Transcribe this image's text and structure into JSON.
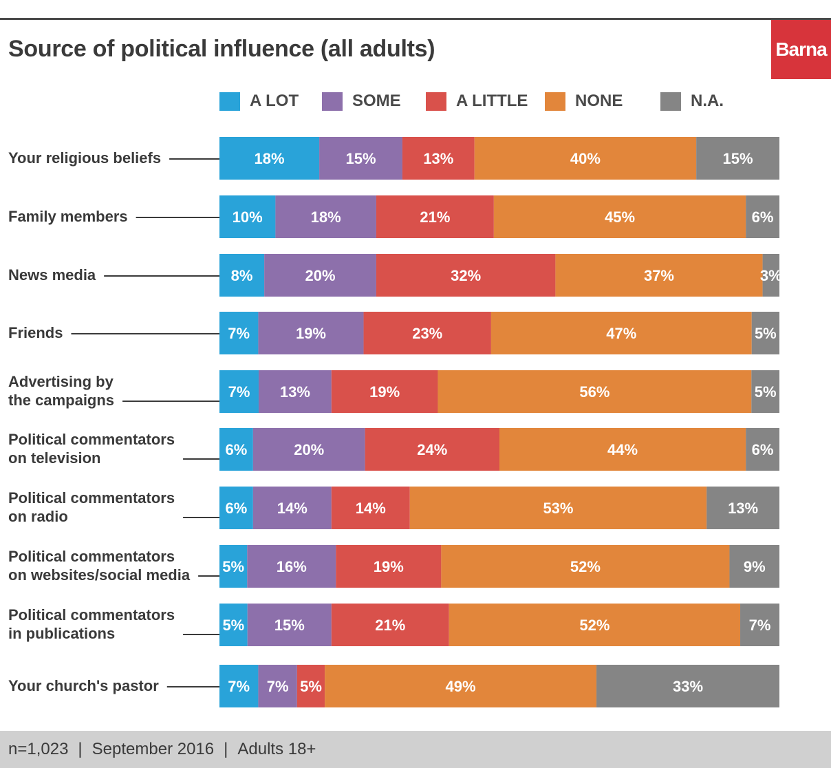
{
  "title": "Source of political influence (all adults)",
  "logo": "Barna",
  "footer": {
    "sample": "n=1,023",
    "date": "September 2016",
    "population": "Adults 18+",
    "separator": "|"
  },
  "chart_data": {
    "type": "bar",
    "orientation": "horizontal",
    "stacked": true,
    "title": "Source of political influence (all adults)",
    "legend_position": "top",
    "series": [
      {
        "name": "A LOT",
        "color": "#29a3d9"
      },
      {
        "name": "SOME",
        "color": "#8d70ab"
      },
      {
        "name": "A LITTLE",
        "color": "#d9514b"
      },
      {
        "name": "NONE",
        "color": "#e2863b"
      },
      {
        "name": "N.A.",
        "color": "#858585"
      }
    ],
    "categories": [
      {
        "label": [
          "Your religious beliefs"
        ],
        "values": [
          18,
          15,
          13,
          40,
          15
        ]
      },
      {
        "label": [
          "Family members"
        ],
        "values": [
          10,
          18,
          21,
          45,
          6
        ]
      },
      {
        "label": [
          "News media"
        ],
        "values": [
          8,
          20,
          32,
          37,
          3
        ]
      },
      {
        "label": [
          "Friends"
        ],
        "values": [
          7,
          19,
          23,
          47,
          5
        ]
      },
      {
        "label": [
          "Advertising by",
          "the campaigns"
        ],
        "values": [
          7,
          13,
          19,
          56,
          5
        ]
      },
      {
        "label": [
          "Political commentators",
          "on television"
        ],
        "values": [
          6,
          20,
          24,
          44,
          6
        ]
      },
      {
        "label": [
          "Political commentators",
          "on radio"
        ],
        "values": [
          6,
          14,
          14,
          53,
          13
        ]
      },
      {
        "label": [
          "Political commentators",
          "on websites/social media"
        ],
        "values": [
          5,
          16,
          19,
          52,
          9
        ]
      },
      {
        "label": [
          "Political commentators",
          "in publications"
        ],
        "values": [
          5,
          15,
          21,
          52,
          7
        ]
      },
      {
        "label": [
          "Your church's pastor"
        ],
        "values": [
          7,
          7,
          5,
          49,
          33
        ]
      }
    ]
  }
}
